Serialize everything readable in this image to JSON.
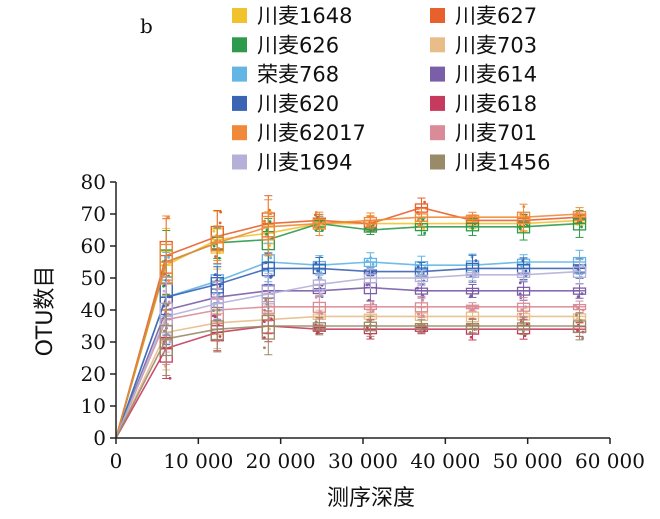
{
  "chart_data": {
    "type": "line",
    "panel_label": "b",
    "title": "",
    "xlabel": "测序深度",
    "ylabel": "OTU数目",
    "xlim": [
      0,
      60000
    ],
    "ylim": [
      0,
      80
    ],
    "x_ticks": [
      0,
      10000,
      20000,
      30000,
      40000,
      50000,
      60000
    ],
    "x_tick_labels": [
      "0",
      "10 000",
      "20 000",
      "30 000",
      "40 000",
      "50 000",
      "60 000"
    ],
    "y_ticks": [
      0,
      10,
      20,
      30,
      40,
      50,
      60,
      70,
      80
    ],
    "y_tick_labels": [
      "0",
      "10",
      "20",
      "30",
      "40",
      "50",
      "60",
      "70",
      "80"
    ],
    "grid": false,
    "legend_position": "top",
    "box_whiskers": true,
    "x": [
      0,
      6100,
      12300,
      18500,
      24700,
      30900,
      37100,
      43300,
      49500,
      56300
    ],
    "series": [
      {
        "name": "川麦1648",
        "color": "#f2c22e",
        "values": [
          0,
          54,
          62,
          64,
          67,
          67,
          67,
          67,
          67,
          68
        ]
      },
      {
        "name": "川麦627",
        "color": "#e8602c",
        "values": [
          0,
          57,
          63,
          67,
          68,
          67,
          72,
          68,
          68,
          69
        ]
      },
      {
        "name": "川麦626",
        "color": "#2e9a4b",
        "values": [
          0,
          55,
          61,
          62,
          67,
          65,
          66,
          66,
          66,
          67
        ]
      },
      {
        "name": "川麦703",
        "color": "#e8bd8a",
        "values": [
          0,
          33,
          36,
          37,
          38,
          38,
          38,
          38,
          38,
          38
        ]
      },
      {
        "name": "荣麦768",
        "color": "#62b5e5",
        "values": [
          0,
          44,
          49,
          55,
          54,
          55,
          54,
          54,
          55,
          55
        ]
      },
      {
        "name": "川麦614",
        "color": "#7b5ea8",
        "values": [
          0,
          40,
          44,
          46,
          46,
          47,
          46,
          46,
          46,
          46
        ]
      },
      {
        "name": "川麦620",
        "color": "#3c64b4",
        "values": [
          0,
          44,
          48,
          53,
          53,
          52,
          52,
          53,
          53,
          53
        ]
      },
      {
        "name": "川麦618",
        "color": "#c63b5d",
        "values": [
          0,
          28,
          33,
          35,
          34,
          34,
          34,
          34,
          34,
          34
        ]
      },
      {
        "name": "川麦62017",
        "color": "#f08a3a",
        "values": [
          0,
          55,
          61,
          66,
          67,
          68,
          69,
          69,
          69,
          70
        ]
      },
      {
        "name": "川麦701",
        "color": "#d98c98",
        "values": [
          0,
          37,
          40,
          41,
          41,
          41,
          41,
          41,
          41,
          41
        ]
      },
      {
        "name": "川麦1694",
        "color": "#b4b0d8",
        "values": [
          0,
          38,
          42,
          45,
          48,
          50,
          50,
          51,
          51,
          52
        ]
      },
      {
        "name": "川麦1456",
        "color": "#9a8b68",
        "values": [
          0,
          31,
          34,
          35,
          35,
          35,
          35,
          35,
          35,
          35
        ]
      }
    ]
  }
}
